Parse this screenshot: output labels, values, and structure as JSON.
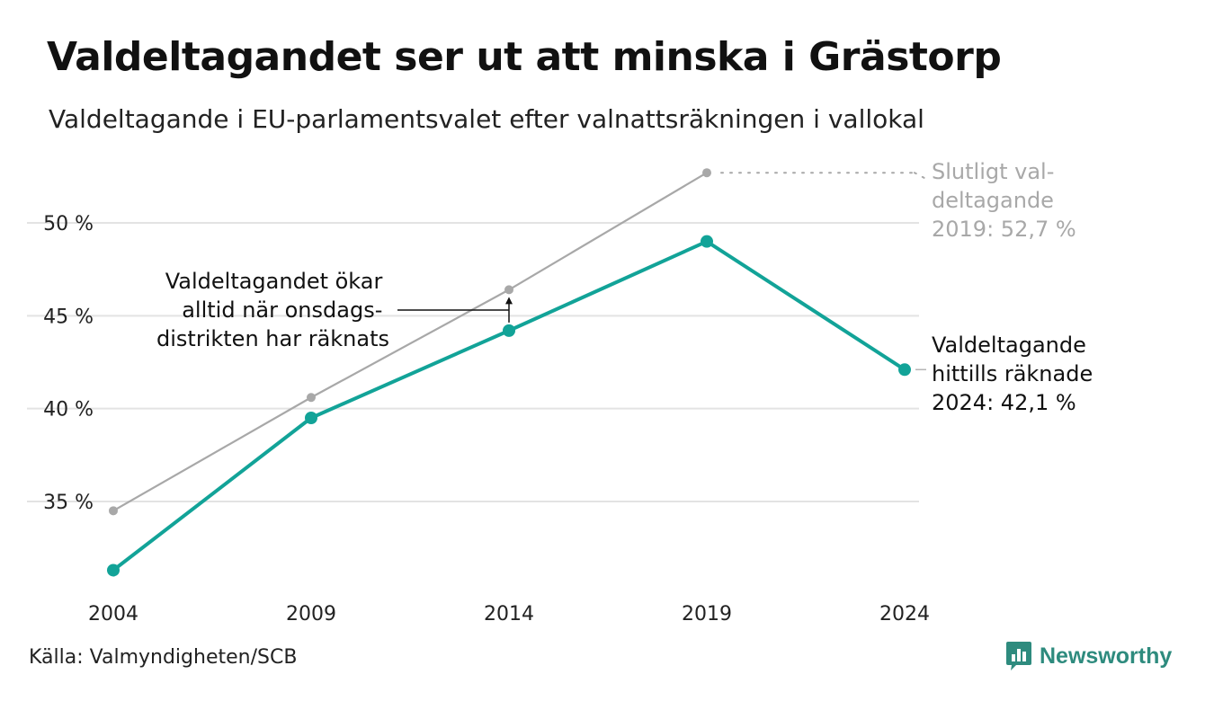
{
  "title": "Valdeltagandet ser ut att minska i Grästorp",
  "subtitle": "Valdeltagande i EU-parlamentsvalet efter valnattsräkningen i vallokal",
  "source": "Källa: Valmyndigheten/SCB",
  "logo": {
    "text": "Newsworthy",
    "icon": "bar-chart-logo-icon"
  },
  "annotations": {
    "final_2019": [
      "Slutligt val-",
      "deltagande",
      "2019: 52,7 %"
    ],
    "counted_2024": [
      "Valdeltagande",
      "hittills räknade",
      "2024: 42,1 %"
    ],
    "wednesday": [
      "Valdeltagandet ökar",
      "alltid när onsdags-",
      "distrikten har räknats"
    ]
  },
  "chart_data": {
    "type": "line",
    "title": "Valdeltagandet ser ut att minska i Grästorp",
    "subtitle": "Valdeltagande i EU-parlamentsvalet efter valnattsräkningen i vallokal",
    "x": [
      2004,
      2009,
      2014,
      2019,
      2024
    ],
    "x_tick_labels": [
      "2004",
      "2009",
      "2014",
      "2019",
      "2024"
    ],
    "y_ticks": [
      35,
      40,
      45,
      50
    ],
    "y_tick_labels": [
      "35 %",
      "40 %",
      "45 %",
      "50 %"
    ],
    "ylim": [
      30,
      53.5
    ],
    "grid": true,
    "series": [
      {
        "name": "Valdeltagande hittills räknade",
        "color": "#12a398",
        "values": [
          31.3,
          39.5,
          44.2,
          49.0,
          42.1
        ]
      },
      {
        "name": "Slutligt valdeltagande",
        "color": "#a8a8a8",
        "values": [
          34.5,
          40.6,
          46.4,
          52.7,
          null
        ]
      }
    ]
  }
}
